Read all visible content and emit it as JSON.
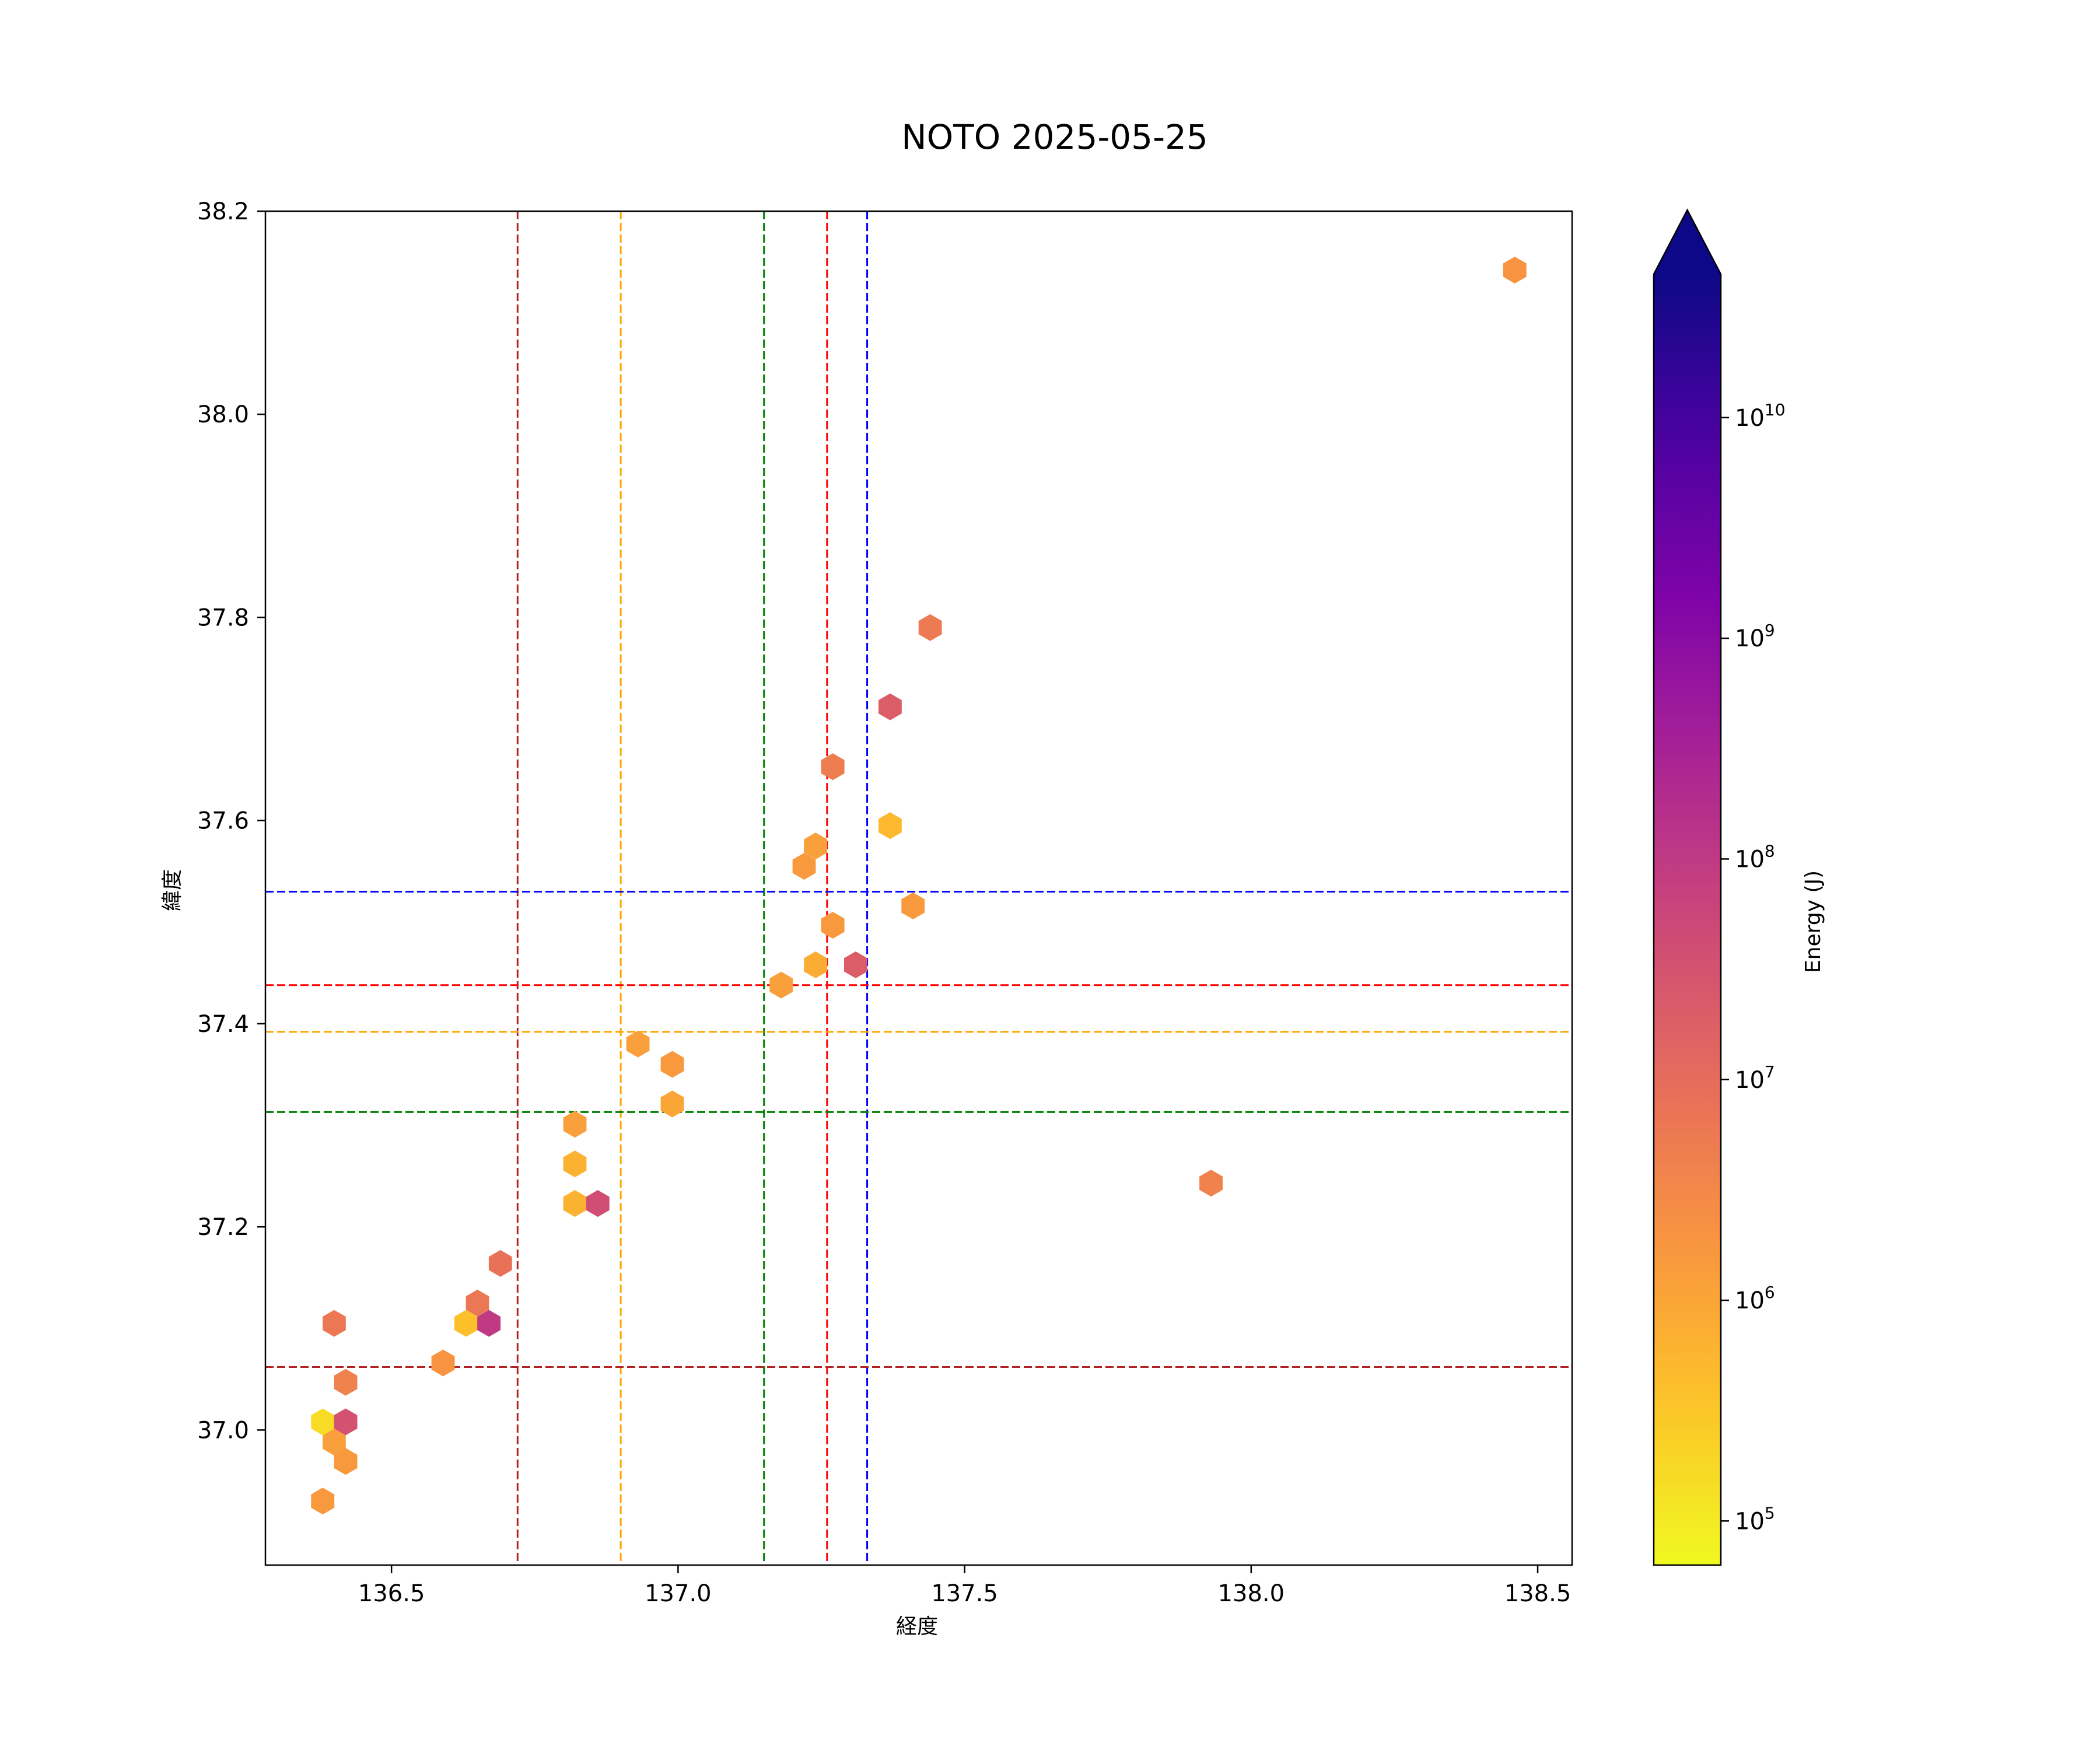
{
  "chart_data": {
    "type": "hexbin",
    "title": "NOTO 2025-05-25",
    "xlabel": "経度",
    "ylabel": "緯度",
    "xlim": [
      136.28,
      138.56
    ],
    "ylim": [
      36.867,
      38.2
    ],
    "xticks": [
      "136.5",
      "137.0",
      "137.5",
      "138.0",
      "138.5"
    ],
    "xtick_values": [
      136.5,
      137.0,
      137.5,
      138.0,
      138.5
    ],
    "yticks": [
      "37.0",
      "37.2",
      "37.4",
      "37.6",
      "37.8",
      "38.0",
      "38.2"
    ],
    "ytick_values": [
      37.0,
      37.2,
      37.4,
      37.6,
      37.8,
      38.0,
      38.2
    ],
    "grid": false,
    "colorbar": {
      "label": "Energy (J)",
      "scale": "log",
      "colormap": "plasma_r",
      "extend": "max",
      "range_log10": [
        4.8,
        10.65
      ],
      "tick_base": "10",
      "tick_exponents": [
        "5",
        "6",
        "7",
        "8",
        "9",
        "10"
      ],
      "tick_exponent_values": [
        5,
        6,
        7,
        8,
        9,
        10
      ]
    },
    "reference_lines": {
      "vertical": [
        {
          "x": 136.72,
          "color": "#b22222"
        },
        {
          "x": 136.9,
          "color": "#ffa500"
        },
        {
          "x": 137.15,
          "color": "#008000"
        },
        {
          "x": 137.26,
          "color": "#ff0000"
        },
        {
          "x": 137.33,
          "color": "#0000ff"
        }
      ],
      "horizontal": [
        {
          "y": 37.53,
          "color": "#0000ff"
        },
        {
          "y": 37.438,
          "color": "#ff0000"
        },
        {
          "y": 37.392,
          "color": "#ffa500"
        },
        {
          "y": 37.313,
          "color": "#008000"
        },
        {
          "y": 37.062,
          "color": "#b22222"
        }
      ]
    },
    "cells": [
      {
        "x": 138.46,
        "y": 38.142,
        "log10_energy": 6.3
      },
      {
        "x": 137.44,
        "y": 37.79,
        "log10_energy": 6.75
      },
      {
        "x": 137.37,
        "y": 37.712,
        "log10_energy": 7.3
      },
      {
        "x": 137.27,
        "y": 37.653,
        "log10_energy": 6.7
      },
      {
        "x": 137.37,
        "y": 37.595,
        "log10_energy": 5.7
      },
      {
        "x": 137.24,
        "y": 37.575,
        "log10_energy": 6.1
      },
      {
        "x": 137.22,
        "y": 37.555,
        "log10_energy": 6.2
      },
      {
        "x": 137.41,
        "y": 37.516,
        "log10_energy": 6.2
      },
      {
        "x": 137.27,
        "y": 37.497,
        "log10_energy": 6.2
      },
      {
        "x": 137.24,
        "y": 37.458,
        "log10_energy": 5.9
      },
      {
        "x": 137.31,
        "y": 37.458,
        "log10_energy": 7.3
      },
      {
        "x": 137.18,
        "y": 37.438,
        "log10_energy": 6.1
      },
      {
        "x": 136.93,
        "y": 37.38,
        "log10_energy": 6.1
      },
      {
        "x": 136.99,
        "y": 37.36,
        "log10_energy": 6.2
      },
      {
        "x": 136.99,
        "y": 37.321,
        "log10_energy": 6.0
      },
      {
        "x": 136.82,
        "y": 37.301,
        "log10_energy": 6.1
      },
      {
        "x": 136.82,
        "y": 37.262,
        "log10_energy": 5.8
      },
      {
        "x": 137.93,
        "y": 37.243,
        "log10_energy": 6.6
      },
      {
        "x": 136.82,
        "y": 37.223,
        "log10_energy": 5.8
      },
      {
        "x": 136.86,
        "y": 37.223,
        "log10_energy": 7.6
      },
      {
        "x": 136.69,
        "y": 37.164,
        "log10_energy": 6.9
      },
      {
        "x": 136.65,
        "y": 37.125,
        "log10_energy": 6.8
      },
      {
        "x": 136.4,
        "y": 37.105,
        "log10_energy": 6.8
      },
      {
        "x": 136.63,
        "y": 37.105,
        "log10_energy": 5.6
      },
      {
        "x": 136.67,
        "y": 37.105,
        "log10_energy": 8.0
      },
      {
        "x": 136.59,
        "y": 37.066,
        "log10_energy": 6.3
      },
      {
        "x": 136.42,
        "y": 37.047,
        "log10_energy": 6.6
      },
      {
        "x": 136.38,
        "y": 37.008,
        "log10_energy": 5.2
      },
      {
        "x": 136.42,
        "y": 37.008,
        "log10_energy": 7.5
      },
      {
        "x": 136.4,
        "y": 36.988,
        "log10_energy": 6.1
      },
      {
        "x": 136.42,
        "y": 36.969,
        "log10_energy": 6.2
      },
      {
        "x": 136.38,
        "y": 36.93,
        "log10_energy": 6.2
      }
    ]
  }
}
